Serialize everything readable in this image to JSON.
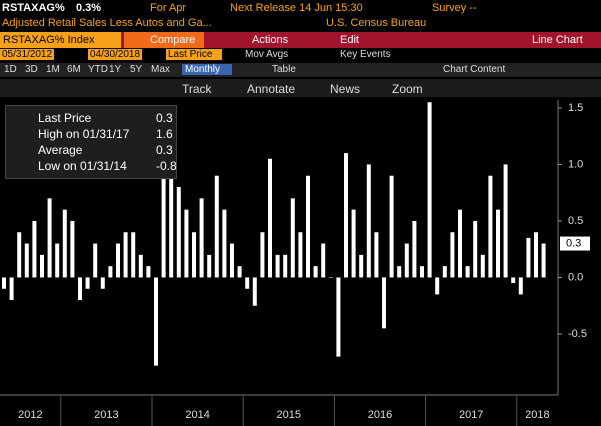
{
  "header": {
    "ticker": "RSTAXAG%",
    "last": "0.3%",
    "period": "For Apr",
    "next_release": "Next Release 14 Jun 15:30",
    "survey": "Survey --",
    "description": "Adjusted Retail Sales Less Autos and Ga...",
    "source": "U.S. Census Bureau"
  },
  "toolbar": {
    "security": "RSTAXAG% Index",
    "compare": "Compare",
    "actions": "Actions",
    "edit": "Edit",
    "chart_type": "Line Chart"
  },
  "range_bar": {
    "start": "05/31/2012",
    "end": "04/30/2018",
    "field": "Last Price",
    "mov_avgs": "Mov Avgs",
    "key_events": "Key Events"
  },
  "period_bar": {
    "periods": [
      "1D",
      "3D",
      "1M",
      "6M",
      "YTD",
      "1Y",
      "5Y",
      "Max"
    ],
    "frequency": "Monthly",
    "table": "Table",
    "chart_content": "Chart Content"
  },
  "tools": [
    "Track",
    "Annotate",
    "News",
    "Zoom"
  ],
  "legend_box": {
    "rows": [
      {
        "label": "Last Price",
        "value": "0.3"
      },
      {
        "label": "High on 01/31/17",
        "value": "1.6"
      },
      {
        "label": "Average",
        "value": "0.3"
      },
      {
        "label": "Low on 01/31/14",
        "value": "-0.8"
      }
    ]
  },
  "chart_data": {
    "type": "bar",
    "color": "#ffffff",
    "values": [
      -0.1,
      -0.2,
      0.4,
      0.3,
      0.5,
      0.2,
      0.7,
      0.3,
      0.6,
      0.5,
      -0.2,
      -0.1,
      0.3,
      -0.1,
      0.1,
      0.3,
      0.4,
      0.4,
      0.2,
      0.1,
      -0.78,
      0.95,
      1.0,
      0.8,
      0.6,
      0.4,
      0.7,
      0.2,
      0.9,
      0.6,
      0.3,
      0.1,
      -0.1,
      -0.25,
      0.4,
      1.05,
      0.2,
      0.2,
      0.7,
      0.4,
      0.9,
      0.1,
      0.3,
      0.0,
      -0.7,
      1.1,
      0.6,
      0.2,
      1.0,
      0.4,
      -0.45,
      0.9,
      0.1,
      0.3,
      0.5,
      0.1,
      1.55,
      -0.15,
      0.1,
      0.4,
      0.6,
      0.1,
      0.5,
      0.2,
      0.9,
      0.6,
      1.0,
      -0.05,
      -0.15,
      0.35,
      0.4,
      0.3
    ],
    "year_labels": [
      "2012",
      "2013",
      "2014",
      "2015",
      "2016",
      "2017",
      "2018"
    ],
    "ylim": [
      -1.04,
      1.57
    ],
    "yticks": [
      1.5,
      {
        "value": 1,
        "label": "1.0"
      },
      0.5,
      {
        "value": 0,
        "label": "0.0"
      },
      -0.5
    ]
  }
}
